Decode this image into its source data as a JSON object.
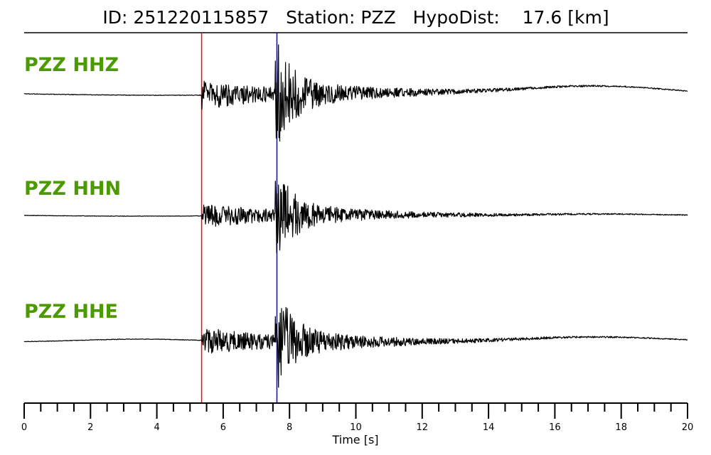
{
  "header": {
    "id_label": "ID:",
    "id_value": "251220115857",
    "station_label": "Station:",
    "station_value": "PZZ",
    "hypodist_label": "HypoDist:",
    "hypodist_value": "17.6",
    "hypodist_unit": "[km]"
  },
  "chart_data": {
    "type": "line",
    "xlabel": "Time [s]",
    "xlim": [
      0,
      20
    ],
    "x_major_ticks": [
      0,
      2,
      4,
      6,
      8,
      10,
      12,
      14,
      16,
      18,
      20
    ],
    "x_minor_step": 0.5,
    "grid": false,
    "channels": [
      "PZZ HHZ",
      "PZZ HHN",
      "PZZ HHE"
    ],
    "picks": [
      {
        "phase": "P",
        "time": 5.35,
        "color": "#ff0000"
      },
      {
        "phase": "S",
        "time": 7.62,
        "color": "#0000ff"
      }
    ],
    "trace_color": "#000000",
    "label_color": "#4a9a00"
  }
}
